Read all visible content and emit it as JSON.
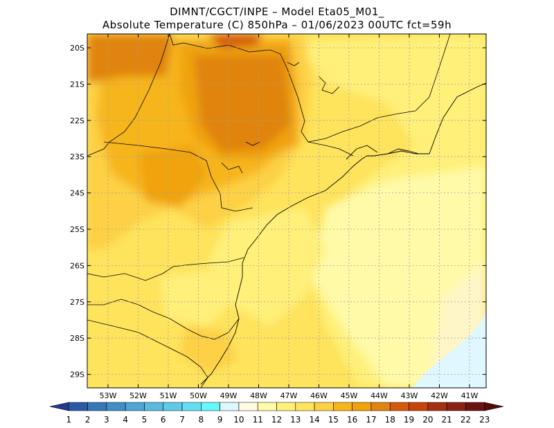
{
  "title": {
    "line1": "DIMNT/CGCT/INPE –  Model Eta05_M01_",
    "line2": "Absolute Temperature (C) 850hPa –  01/06/2023 00UTC fct=59h"
  },
  "map": {
    "lat_labels": [
      "20S",
      "21S",
      "22S",
      "23S",
      "24S",
      "25S",
      "26S",
      "27S",
      "28S",
      "29S"
    ],
    "lon_labels": [
      "53W",
      "52W",
      "51W",
      "50W",
      "49W",
      "48W",
      "47W",
      "46W",
      "45W",
      "44W",
      "43W",
      "42W",
      "41W"
    ]
  },
  "colorbar": {
    "labels": [
      "1",
      "2",
      "3",
      "4",
      "5",
      "6",
      "7",
      "8",
      "9",
      "10",
      "11",
      "12",
      "13",
      "14",
      "15",
      "16",
      "17",
      "18",
      "19",
      "20",
      "21",
      "22",
      "23"
    ],
    "colors": [
      "#233a8c",
      "#2a5aa6",
      "#3578b8",
      "#3f8fc6",
      "#4ea6d4",
      "#5bb9de",
      "#5fcae8",
      "#62dff2",
      "#66f8fc",
      "#dff7ff",
      "#fffbe0",
      "#fffaa8",
      "#fff07a",
      "#fee35c",
      "#fdd044",
      "#f7b51b",
      "#f0a30a",
      "#e0840f",
      "#d45a0a",
      "#c8430a",
      "#a52e14",
      "#8a2116",
      "#6b1212",
      "#550a0a"
    ]
  }
}
